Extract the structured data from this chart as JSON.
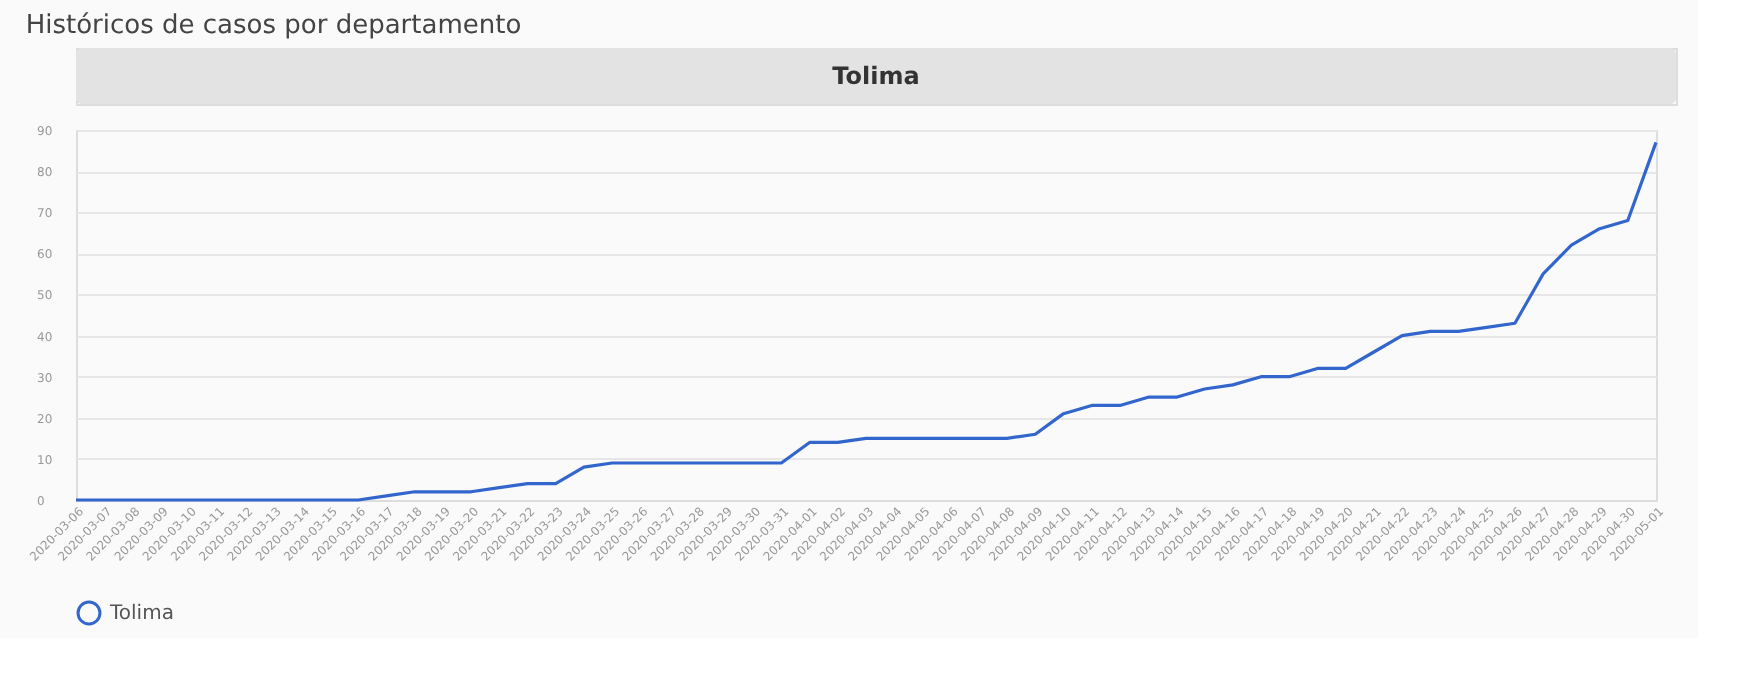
{
  "chart_data": {
    "type": "line",
    "title": "Históricos de casos por departamento",
    "subtitle": "Tolima",
    "x": [
      "2020-03-06",
      "2020-03-07",
      "2020-03-08",
      "2020-03-09",
      "2020-03-10",
      "2020-03-11",
      "2020-03-12",
      "2020-03-13",
      "2020-03-14",
      "2020-03-15",
      "2020-03-16",
      "2020-03-17",
      "2020-03-18",
      "2020-03-19",
      "2020-03-20",
      "2020-03-21",
      "2020-03-22",
      "2020-03-23",
      "2020-03-24",
      "2020-03-25",
      "2020-03-26",
      "2020-03-27",
      "2020-03-28",
      "2020-03-29",
      "2020-03-30",
      "2020-03-31",
      "2020-04-01",
      "2020-04-02",
      "2020-04-03",
      "2020-04-04",
      "2020-04-05",
      "2020-04-06",
      "2020-04-07",
      "2020-04-08",
      "2020-04-09",
      "2020-04-10",
      "2020-04-11",
      "2020-04-12",
      "2020-04-13",
      "2020-04-14",
      "2020-04-15",
      "2020-04-16",
      "2020-04-17",
      "2020-04-18",
      "2020-04-19",
      "2020-04-20",
      "2020-04-21",
      "2020-04-22",
      "2020-04-23",
      "2020-04-24",
      "2020-04-25",
      "2020-04-26",
      "2020-04-27",
      "2020-04-28",
      "2020-04-29",
      "2020-04-30",
      "2020-05-01"
    ],
    "series": [
      {
        "name": "Tolima",
        "color": "#3366cc",
        "values": [
          0,
          0,
          0,
          0,
          0,
          0,
          0,
          0,
          0,
          0,
          0,
          1,
          2,
          2,
          2,
          3,
          4,
          4,
          8,
          9,
          9,
          9,
          9,
          9,
          9,
          9,
          14,
          14,
          15,
          15,
          15,
          15,
          15,
          15,
          16,
          21,
          23,
          23,
          25,
          25,
          27,
          28,
          30,
          30,
          32,
          32,
          36,
          40,
          41,
          41,
          42,
          43,
          55,
          62,
          66,
          68,
          87
        ]
      }
    ],
    "ylim": [
      0,
      90
    ],
    "yticks": [
      0,
      10,
      20,
      30,
      40,
      50,
      60,
      70,
      80,
      90
    ],
    "grid": "y",
    "legend": "bottom",
    "marker": "none",
    "line_style": "solid"
  }
}
